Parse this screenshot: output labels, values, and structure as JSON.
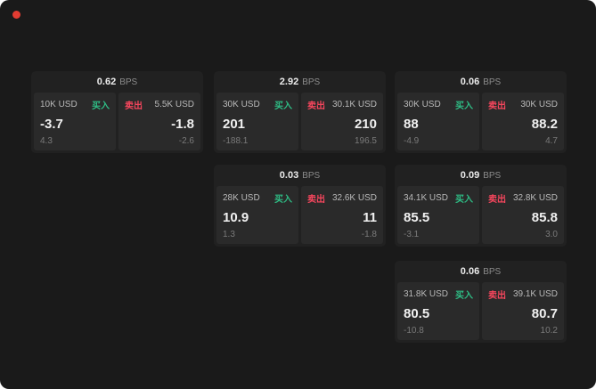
{
  "colors": {
    "background": "#1a1a1a",
    "card": "#212121",
    "panel": "#2a2a2a",
    "buy": "#2ebd85",
    "sell": "#f6465d",
    "indicator": "#e23c32"
  },
  "cards": [
    {
      "spread": "0.62",
      "unit": "BPS",
      "buy": {
        "amount": "10K USD",
        "label": "买入",
        "price": "-3.7",
        "delta": "4.3"
      },
      "sell": {
        "amount": "5.5K USD",
        "label": "卖出",
        "price": "-1.8",
        "delta": "-2.6"
      }
    },
    {
      "spread": "2.92",
      "unit": "BPS",
      "buy": {
        "amount": "30K USD",
        "label": "买入",
        "price": "201",
        "delta": "-188.1"
      },
      "sell": {
        "amount": "30.1K USD",
        "label": "卖出",
        "price": "210",
        "delta": "196.5"
      }
    },
    {
      "spread": "0.06",
      "unit": "BPS",
      "buy": {
        "amount": "30K USD",
        "label": "买入",
        "price": "88",
        "delta": "-4.9"
      },
      "sell": {
        "amount": "30K USD",
        "label": "卖出",
        "price": "88.2",
        "delta": "4.7"
      }
    },
    {
      "spread": "0.03",
      "unit": "BPS",
      "buy": {
        "amount": "28K USD",
        "label": "买入",
        "price": "10.9",
        "delta": "1.3"
      },
      "sell": {
        "amount": "32.6K USD",
        "label": "卖出",
        "price": "11",
        "delta": "-1.8"
      }
    },
    {
      "spread": "0.09",
      "unit": "BPS",
      "buy": {
        "amount": "34.1K USD",
        "label": "买入",
        "price": "85.5",
        "delta": "-3.1"
      },
      "sell": {
        "amount": "32.8K USD",
        "label": "卖出",
        "price": "85.8",
        "delta": "3.0"
      }
    },
    {
      "spread": "0.06",
      "unit": "BPS",
      "buy": {
        "amount": "31.8K USD",
        "label": "买入",
        "price": "80.5",
        "delta": "-10.8"
      },
      "sell": {
        "amount": "39.1K USD",
        "label": "卖出",
        "price": "80.7",
        "delta": "10.2"
      }
    }
  ]
}
